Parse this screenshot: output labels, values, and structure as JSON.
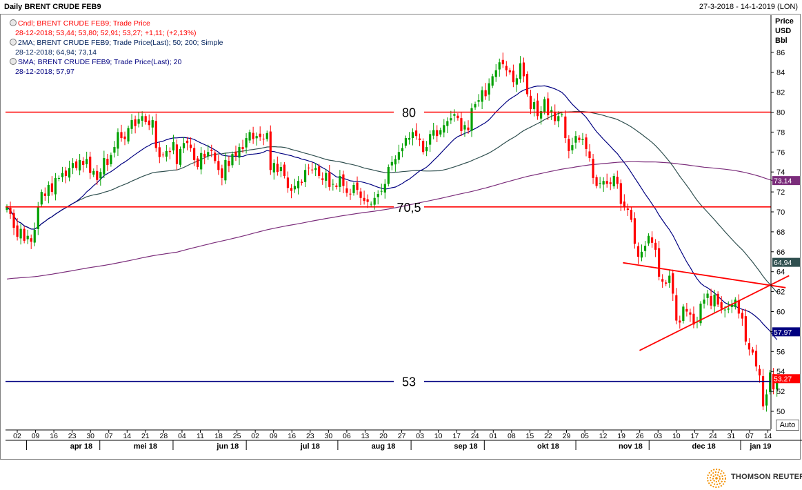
{
  "header": {
    "title": "Daily BRENT CRUDE FEB9",
    "date_range": "27-3-2018 - 14-1-2019 (LON)"
  },
  "legend": [
    {
      "line1": "Cndl; BRENT CRUDE FEB9; Trade Price",
      "line2": "28-12-2018; 53,44; 53,80; 52,91; 53,27; +1,11; (+2,13%)",
      "color": "#ff0000"
    },
    {
      "line1": "2MA; BRENT CRUDE FEB9; Trade Price(Last); 50; 200; Simple",
      "line2": "28-12-2018; 64,94; 73,14",
      "color": "#00205b"
    },
    {
      "line1": "SMA; BRENT CRUDE FEB9; Trade Price(Last); 20",
      "line2": "28-12-2018; 57,97",
      "color": "#000080"
    }
  ],
  "axis_units": [
    "Price",
    "USD",
    "Bbl"
  ],
  "auto_label": "Auto",
  "brand": "THOMSON REUTERS",
  "chart_data": {
    "type": "candlestick",
    "title": "Daily BRENT CRUDE FEB9",
    "ylim": [
      48.5,
      88.5
    ],
    "y_ticks": [
      50,
      52,
      54,
      56,
      58,
      60,
      62,
      64,
      66,
      68,
      70,
      72,
      74,
      76,
      78,
      80,
      82,
      84,
      86
    ],
    "x_ticks": [
      "02",
      "09",
      "16",
      "23",
      "30",
      "07",
      "14",
      "21",
      "28",
      "04",
      "11",
      "18",
      "25",
      "02",
      "09",
      "16",
      "23",
      "30",
      "06",
      "13",
      "20",
      "27",
      "03",
      "10",
      "17",
      "24",
      "01",
      "08",
      "15",
      "22",
      "29",
      "05",
      "12",
      "19",
      "26",
      "03",
      "10",
      "17",
      "24",
      "31",
      "07",
      "14"
    ],
    "month_labels": [
      {
        "label": "apr 18",
        "tick": 3.5
      },
      {
        "label": "mei 18",
        "tick": 7
      },
      {
        "label": "jun 18",
        "tick": 11.5
      },
      {
        "label": "jul 18",
        "tick": 16
      },
      {
        "label": "aug 18",
        "tick": 20
      },
      {
        "label": "sep 18",
        "tick": 24.5
      },
      {
        "label": "okt 18",
        "tick": 29
      },
      {
        "label": "nov 18",
        "tick": 33.5
      },
      {
        "label": "dec 18",
        "tick": 37.5
      },
      {
        "label": "jan 19",
        "tick": 40.6
      }
    ],
    "closes": [
      70.5,
      69.8,
      68.4,
      67.5,
      68.3,
      67.1,
      67.6,
      67.0,
      68.2,
      70.5,
      72.0,
      71.6,
      72.7,
      72.0,
      73.4,
      73.4,
      73.9,
      73.6,
      74.4,
      74.9,
      74.4,
      75.2,
      74.7,
      75.3,
      73.9,
      74.1,
      73.2,
      74.0,
      75.4,
      74.7,
      75.7,
      76.5,
      78.0,
      77.4,
      77.3,
      78.4,
      79.2,
      78.6,
      79.3,
      79.6,
      79.0,
      78.7,
      79.2,
      76.4,
      75.5,
      75.7,
      76.1,
      76.0,
      77.0,
      74.8,
      76.3,
      76.9,
      76.9,
      76.4,
      75.2,
      74.5,
      75.9,
      75.5,
      76.0,
      76.1,
      75.1,
      74.2,
      73.4,
      75.2,
      74.6,
      75.8,
      75.6,
      76.5,
      76.3,
      77.4,
      78.0,
      77.3,
      77.6,
      77.5,
      77.3,
      77.9,
      74.2,
      74.9,
      74.0,
      74.5,
      73.6,
      72.4,
      72.1,
      72.6,
      73.1,
      72.9,
      74.2,
      74.4,
      74.2,
      74.4,
      73.6,
      73.2,
      73.9,
      72.5,
      72.8,
      72.5,
      73.6,
      72.6,
      71.9,
      71.8,
      72.7,
      72.2,
      71.4,
      71.1,
      71.0,
      70.8,
      71.4,
      71.8,
      72.1,
      72.8,
      74.5,
      75.0,
      75.3,
      76.0,
      76.4,
      77.4,
      77.4,
      78.0,
      77.6,
      77.2,
      76.0,
      76.5,
      77.8,
      78.2,
      77.6,
      78.2,
      78.7,
      79.1,
      79.4,
      79.8,
      79.4,
      78.1,
      78.7,
      78.2,
      80.4,
      80.8,
      81.2,
      82.2,
      81.6,
      82.9,
      83.6,
      84.2,
      85.0,
      84.8,
      84.2,
      84.0,
      83.0,
      83.4,
      84.9,
      83.6,
      81.8,
      80.3,
      81.0,
      79.6,
      80.1,
      81.3,
      79.7,
      80.2,
      79.1,
      79.6,
      79.8,
      77.4,
      76.1,
      76.7,
      77.6,
      77.2,
      77.3,
      76.3,
      75.4,
      73.4,
      72.6,
      72.9,
      73.1,
      72.8,
      72.8,
      73.6,
      72.8,
      70.8,
      70.5,
      70.2,
      69.2,
      66.8,
      65.5,
      66.0,
      66.6,
      67.6,
      66.9,
      66.2,
      63.5,
      63.0,
      62.8,
      63.6,
      61.8,
      59.1,
      58.9,
      60.5,
      60.0,
      59.7,
      58.7,
      59.0,
      60.8,
      61.2,
      61.8,
      60.6,
      61.7,
      60.7,
      60.3,
      60.2,
      60.3,
      60.7,
      61.2,
      59.8,
      59.3,
      57.0,
      56.2,
      55.9,
      54.5,
      53.6,
      50.5,
      51.7,
      53.9,
      52.2,
      53.3
    ],
    "reference_lines": [
      {
        "value": 80,
        "label": "80",
        "color": "#ff0000"
      },
      {
        "value": 70.5,
        "label": "70,5",
        "color": "#ff0000"
      },
      {
        "value": 53,
        "label": "53",
        "color": "#000080"
      }
    ],
    "price_markers": [
      {
        "value": 73.14,
        "label": "73,14",
        "color": "#7b2d7b"
      },
      {
        "value": 64.94,
        "label": "64,94",
        "color": "#2f4f4f"
      },
      {
        "value": 57.97,
        "label": "57,97",
        "color": "#000080"
      },
      {
        "value": 53.27,
        "label": "53,27",
        "color": "#ff0000"
      }
    ],
    "colors": {
      "up": "#00a000",
      "down": "#ff0000",
      "ma50": "#2f4f4f",
      "ma200": "#7b2d7b",
      "sma20": "#000080",
      "trend": "#ff0000"
    }
  }
}
